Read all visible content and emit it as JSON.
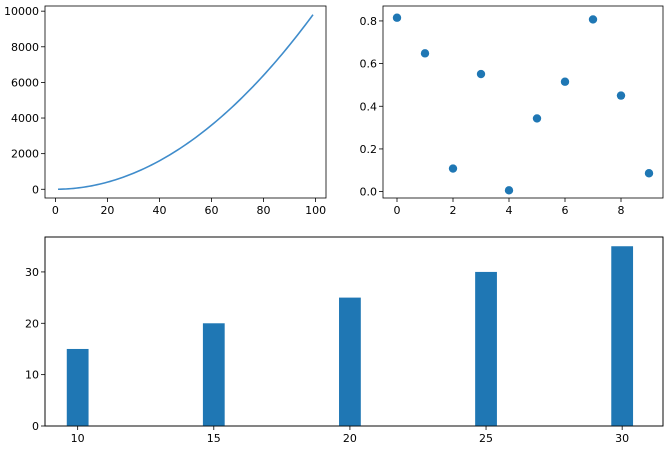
{
  "chart_data": [
    {
      "type": "line",
      "x_range": [
        1,
        99
      ],
      "function": "y = x^2",
      "xlim": [
        -4,
        104
      ],
      "ylim": [
        -490,
        10290
      ],
      "x_ticks": [
        0,
        20,
        40,
        60,
        80,
        100
      ],
      "y_ticks": [
        0,
        2000,
        4000,
        6000,
        8000,
        10000
      ],
      "x_tick_labels": [
        "0",
        "20",
        "40",
        "60",
        "80",
        "100"
      ],
      "y_tick_labels": [
        "0",
        "2000",
        "4000",
        "6000",
        "8000",
        "10000"
      ],
      "color": "#3f8ccb",
      "grid": false
    },
    {
      "type": "scatter",
      "x": [
        0,
        1,
        2,
        3,
        4,
        5,
        6,
        7,
        8,
        9
      ],
      "y": [
        0.815,
        0.648,
        0.108,
        0.551,
        0.006,
        0.343,
        0.515,
        0.807,
        0.45,
        0.086
      ],
      "xlim": [
        -0.5,
        9.5
      ],
      "ylim": [
        -0.03,
        0.87
      ],
      "x_ticks": [
        0,
        2,
        4,
        6,
        8
      ],
      "y_ticks": [
        0.0,
        0.2,
        0.4,
        0.6,
        0.8
      ],
      "x_tick_labels": [
        "0",
        "2",
        "4",
        "6",
        "8"
      ],
      "y_tick_labels": [
        "0.0",
        "0.2",
        "0.4",
        "0.6",
        "0.8"
      ],
      "color": "#1f77b4",
      "grid": false
    },
    {
      "type": "bar",
      "categories": [
        10,
        15,
        20,
        25,
        30
      ],
      "values": [
        15,
        20,
        25,
        30,
        35
      ],
      "bar_width": 0.8,
      "xlim": [
        8.8,
        31.5
      ],
      "ylim": [
        0,
        36.8
      ],
      "x_ticks": [
        10,
        15,
        20,
        25,
        30
      ],
      "y_ticks": [
        0,
        10,
        20,
        30
      ],
      "x_tick_labels": [
        "10",
        "15",
        "20",
        "25",
        "30"
      ],
      "y_tick_labels": [
        "0",
        "10",
        "20",
        "30"
      ],
      "color": "#1f77b4",
      "grid": false
    }
  ]
}
